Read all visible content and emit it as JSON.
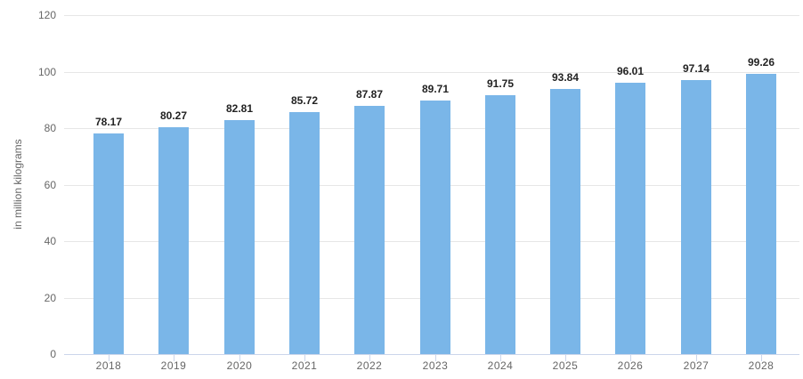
{
  "chart_data": {
    "type": "bar",
    "title": "",
    "categories": [
      "2018",
      "2019",
      "2020",
      "2021",
      "2022",
      "2023",
      "2024",
      "2025",
      "2026",
      "2027",
      "2028"
    ],
    "values": [
      78.17,
      80.27,
      82.81,
      85.72,
      87.87,
      89.71,
      91.75,
      93.84,
      96.01,
      97.14,
      99.26
    ],
    "value_labels": [
      "78.17",
      "80.27",
      "82.81",
      "85.72",
      "87.87",
      "89.71",
      "91.75",
      "93.84",
      "96.01",
      "97.14",
      "99.26"
    ],
    "xlabel": "",
    "ylabel": "in million kilograms",
    "ylim": [
      0,
      120
    ],
    "yticks": [
      0,
      20,
      40,
      60,
      80,
      100,
      120
    ],
    "ytick_labels": [
      "0",
      "20",
      "40",
      "60",
      "80",
      "100",
      "120"
    ],
    "grid": true,
    "legend_position": "none",
    "data_labels_visible": true
  },
  "colors": {
    "bar_fill": "#7ab6e8",
    "grid_line": "#e6e6e6",
    "axis_line": "#ccd6eb",
    "tick_mark": "#ccd6eb",
    "tick_label": "#666666",
    "value_label": "#222222",
    "background": "#ffffff"
  }
}
